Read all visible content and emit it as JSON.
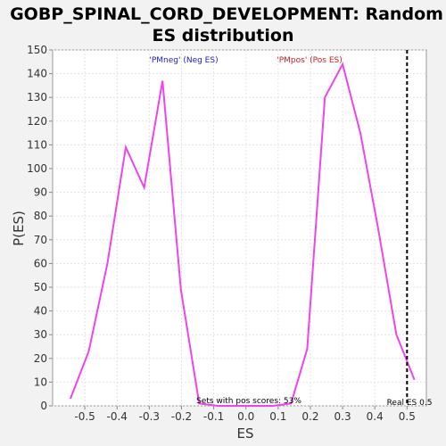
{
  "chart_data": {
    "type": "line",
    "title_line1": "GOBP_SPINAL_CORD_DEVELOPMENT: Random",
    "title_line2": "ES distribution",
    "xlabel": "ES",
    "ylabel": "P(ES)",
    "xlim": [
      -0.6,
      0.56
    ],
    "ylim": [
      0,
      150
    ],
    "x_ticks": [
      -0.5,
      -0.4,
      -0.3,
      -0.2,
      -0.1,
      0.0,
      0.1,
      0.2,
      0.3,
      0.4,
      0.5
    ],
    "x_tick_labels": [
      "-0.5",
      "-0.4",
      "-0.3",
      "-0.2",
      "-0.1",
      "0.0",
      "0.1",
      "0.2",
      "0.3",
      "0.4",
      "0.5"
    ],
    "y_ticks": [
      0,
      10,
      20,
      30,
      40,
      50,
      60,
      70,
      80,
      90,
      100,
      110,
      120,
      130,
      140,
      150
    ],
    "y_tick_labels": [
      "0",
      "10",
      "20",
      "30",
      "40",
      "50",
      "60",
      "70",
      "80",
      "90",
      "100",
      "110",
      "120",
      "130",
      "140",
      "150"
    ],
    "grid": true,
    "series": [
      {
        "x": [
          -0.545,
          -0.488,
          -0.43,
          -0.373,
          -0.316,
          -0.259,
          -0.202,
          -0.145,
          -0.088,
          -0.031,
          0.026,
          0.083,
          0.14,
          0.19,
          0.245,
          0.3,
          0.355,
          0.41,
          0.467,
          0.523
        ],
        "y": [
          3,
          23,
          60,
          109,
          92,
          137,
          49,
          1,
          0,
          0,
          0,
          0,
          1,
          24,
          130,
          144,
          115,
          75,
          30,
          11
        ],
        "color": "#ee44ee"
      }
    ],
    "real_es": 0.5,
    "real_es_label": "Real ES 0.5",
    "annotations": {
      "neg": {
        "text": "'PMneg' (Neg ES)",
        "color": "#2222cc"
      },
      "pos": {
        "text": "'PMpos' (Pos ES)",
        "color": "#cc2222"
      },
      "pos_scores": "Sets with pos scores: 53%"
    }
  }
}
